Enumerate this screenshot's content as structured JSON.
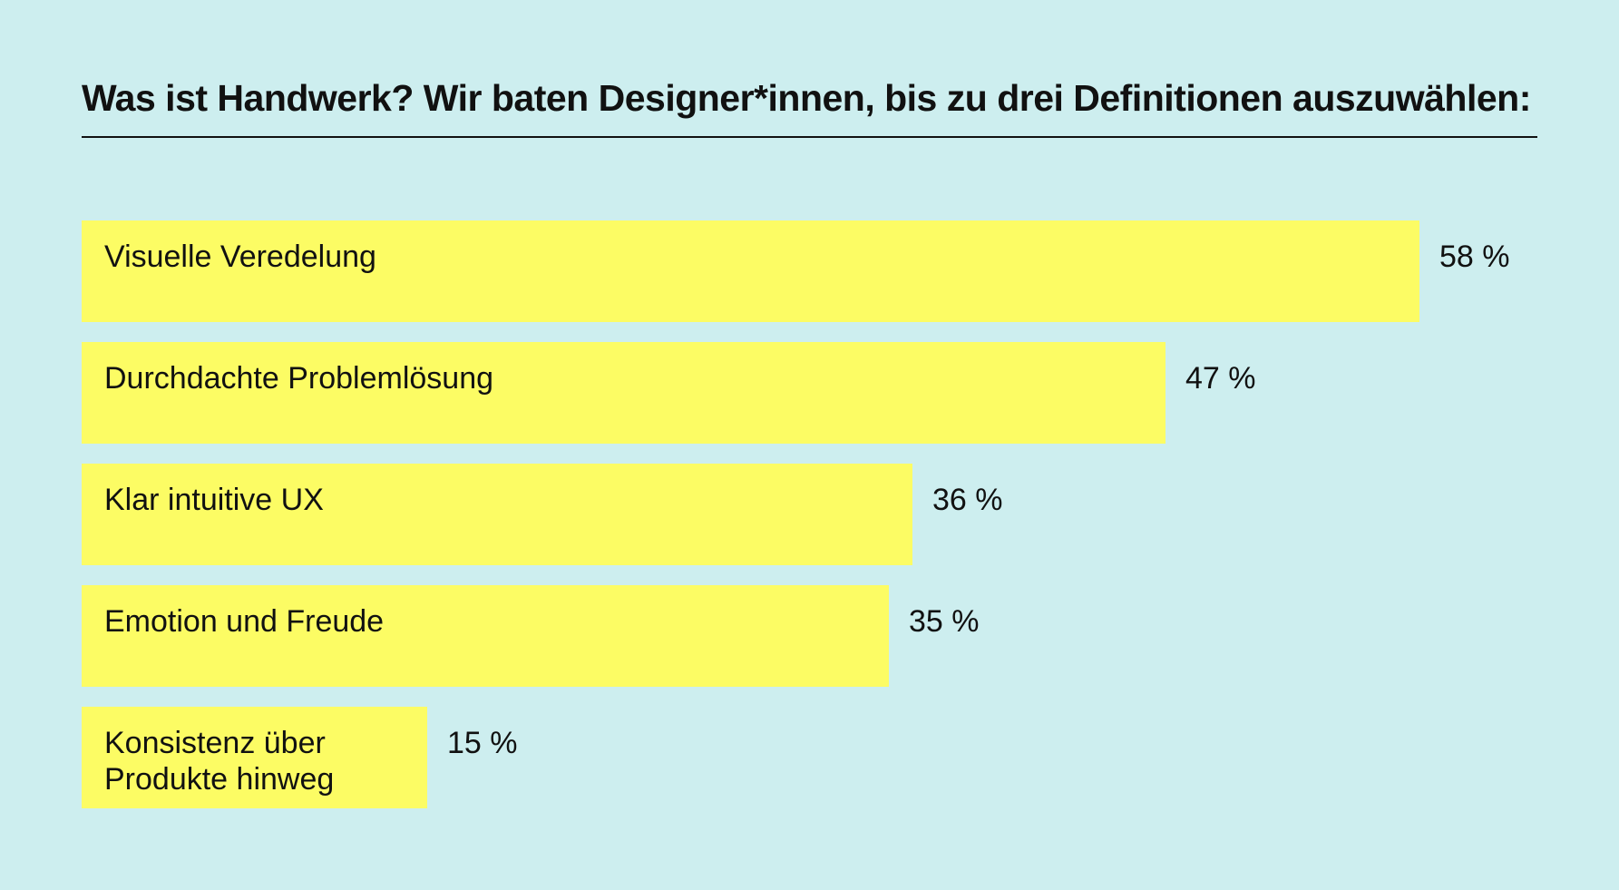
{
  "colors": {
    "background": "#cdeeef",
    "bar": "#fcfc64",
    "text": "#111111"
  },
  "chart_data": {
    "type": "bar",
    "orientation": "horizontal",
    "title": "Was ist Handwerk? Wir baten Designer*innen, bis zu drei Definitionen auszuwählen:",
    "categories": [
      "Visuelle Veredelung",
      "Durchdachte Problemlösung",
      "Klar intuitive UX",
      "Emotion und Freude",
      "Konsistenz über\nProdukte hinweg"
    ],
    "values": [
      58,
      47,
      36,
      35,
      15
    ],
    "value_labels": [
      "58 %",
      "47 %",
      "36 %",
      "35 %",
      "15 %"
    ],
    "unit": "%",
    "xlim": [
      0,
      58
    ],
    "grid": false,
    "legend": "none"
  }
}
